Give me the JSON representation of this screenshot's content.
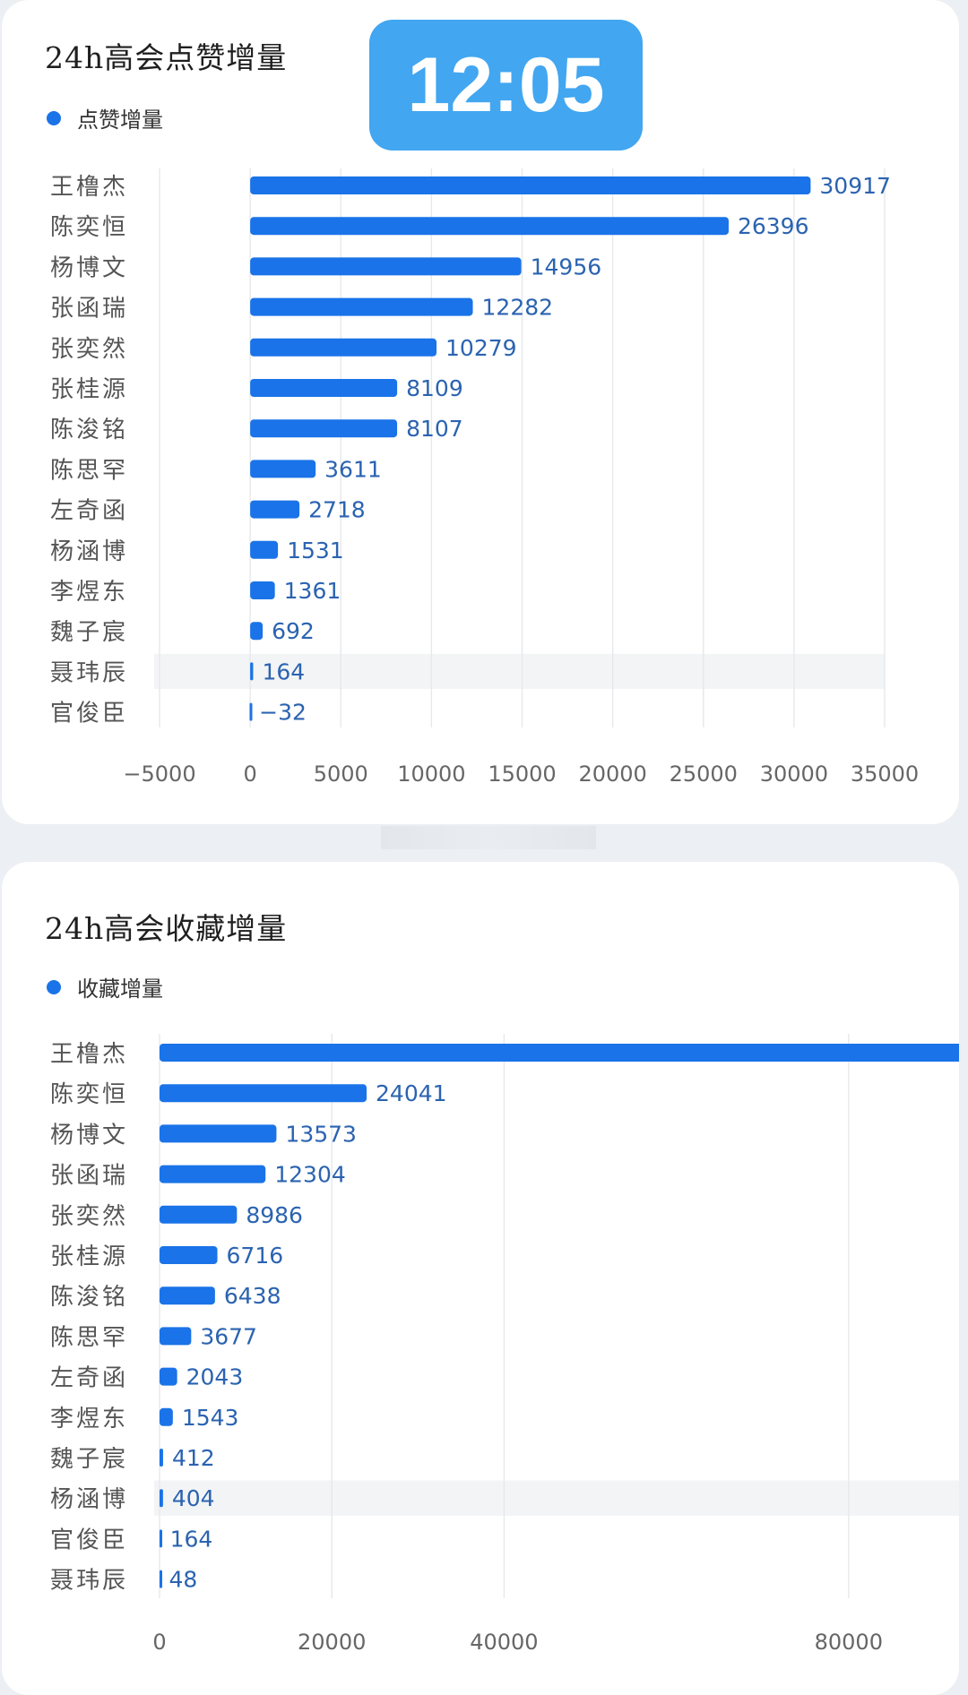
{
  "time_badge": "12:05",
  "colors": {
    "bar": "#1a73e8",
    "label": "#2b63b0",
    "badge": "#42a6f0"
  },
  "chart_data": [
    {
      "type": "bar",
      "orientation": "horizontal",
      "title": "24h高会点赞增量",
      "legend": "点赞增量",
      "legend_position": "top-left",
      "categories": [
        "王橹杰",
        "陈奕恒",
        "杨博文",
        "张函瑞",
        "张奕然",
        "张桂源",
        "陈浚铭",
        "陈思罕",
        "左奇函",
        "杨涵博",
        "李煜东",
        "魏子宸",
        "聂玮辰",
        "官俊臣"
      ],
      "values": [
        30917,
        26396,
        14956,
        12282,
        10279,
        8109,
        8107,
        3611,
        2718,
        1531,
        1361,
        692,
        164,
        -32
      ],
      "xlim": [
        -5000,
        35000
      ],
      "xticks": [
        -5000,
        0,
        5000,
        10000,
        15000,
        20000,
        25000,
        30000,
        35000
      ],
      "xtick_labels": [
        "−5000",
        "0",
        "5000",
        "10000",
        "15000",
        "20000",
        "25000",
        "30000",
        "35000"
      ],
      "grid": true
    },
    {
      "type": "bar",
      "orientation": "horizontal",
      "title": "24h高会收藏增量",
      "legend": "收藏增量",
      "legend_position": "top-left",
      "categories": [
        "王橹杰",
        "陈奕恒",
        "杨博文",
        "张函瑞",
        "张奕然",
        "张桂源",
        "陈浚铭",
        "陈思罕",
        "左奇函",
        "李煜东",
        "魏子宸",
        "杨涵博",
        "官俊臣",
        "聂玮辰"
      ],
      "values": [
        97428,
        24041,
        13573,
        12304,
        8986,
        6716,
        6438,
        3677,
        2043,
        1543,
        412,
        404,
        164,
        48
      ],
      "xlim": [
        0,
        100000
      ],
      "xticks": [
        0,
        20000,
        40000,
        80000
      ],
      "xtick_labels": [
        "0",
        "20000",
        "40000",
        "80000"
      ],
      "grid": true
    }
  ]
}
